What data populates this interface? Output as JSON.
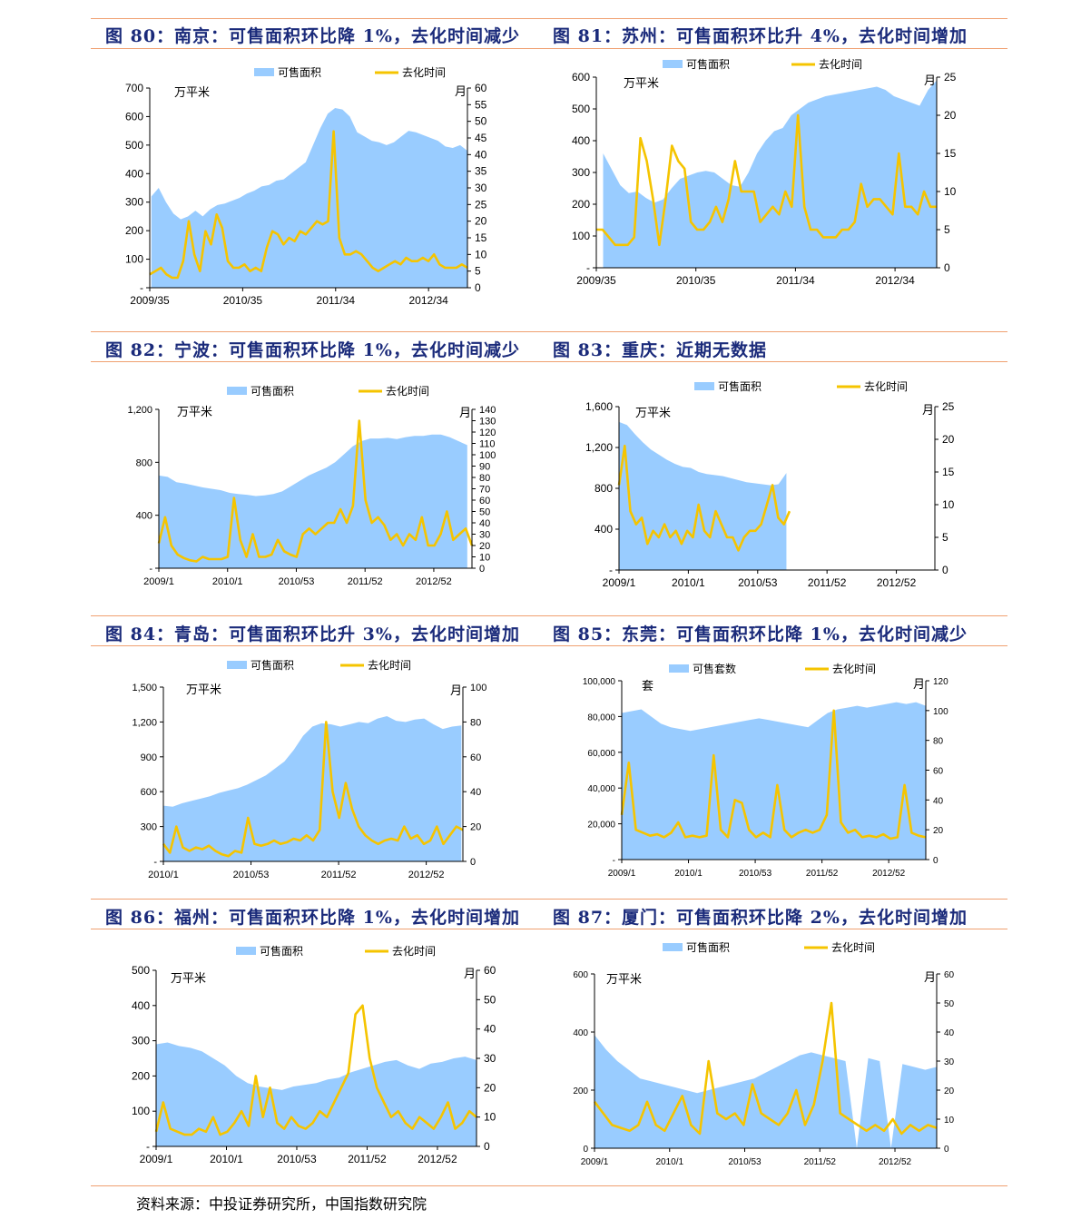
{
  "colors": {
    "area": "#99ccff",
    "line": "#f5c400",
    "title": "#1a2a7a",
    "rule": "#f0a070"
  },
  "source_note": "资料来源：中投证券研究所，中国指数研究院",
  "panels": [
    {
      "title": "图 80：南京：可售面积环比降 1%，去化时间减少",
      "legend": [
        "可售面积",
        "去化时间"
      ],
      "left_unit": "万平米",
      "right_unit": "月",
      "left_ticks": [
        "700",
        "600",
        "500",
        "400",
        "300",
        "200",
        "100",
        "-"
      ],
      "right_ticks": [
        "60",
        "55",
        "50",
        "45",
        "40",
        "35",
        "30",
        "25",
        "20",
        "15",
        "10",
        "5",
        "0"
      ],
      "x_ticks": [
        "2009/35",
        "2010/35",
        "2011/34",
        "2012/34"
      ],
      "chart_data": {
        "type": "area+line",
        "ylim": [
          0,
          700
        ],
        "y2lim": [
          0,
          60
        ],
        "series": [
          {
            "name": "可售面积",
            "axis": "left",
            "values": [
              320,
              350,
              300,
              260,
              240,
              250,
              270,
              250,
              275,
              290,
              295,
              305,
              315,
              330,
              340,
              355,
              360,
              375,
              380,
              400,
              420,
              440,
              500,
              560,
              610,
              630,
              625,
              600,
              545,
              530,
              515,
              510,
              500,
              510,
              530,
              550,
              545,
              535,
              525,
              515,
              495,
              490,
              500,
              480
            ]
          },
          {
            "name": "去化时间",
            "axis": "right",
            "values": [
              4,
              5,
              6,
              4,
              3,
              3,
              8,
              20,
              10,
              5,
              17,
              13,
              22,
              18,
              8,
              6,
              6,
              7,
              5,
              6,
              5,
              12,
              17,
              16,
              13,
              15,
              14,
              17,
              16,
              18,
              20,
              19,
              20,
              47,
              15,
              10,
              10,
              11,
              10,
              8,
              6,
              5,
              6,
              7,
              8,
              7,
              9,
              8,
              8,
              9,
              8,
              10,
              7,
              6,
              6,
              6,
              7,
              6
            ]
          }
        ]
      }
    },
    {
      "title": "图 81：苏州：可售面积环比升 4%，去化时间增加",
      "legend": [
        "可售面积",
        "去化时间"
      ],
      "left_unit": "万平米",
      "right_unit": "月",
      "left_ticks": [
        "600",
        "500",
        "400",
        "300",
        "200",
        "100",
        "-"
      ],
      "right_ticks": [
        "25",
        "20",
        "15",
        "10",
        "5",
        "0"
      ],
      "x_ticks": [
        "2009/35",
        "2010/35",
        "2011/34",
        "2012/34"
      ],
      "chart_data": {
        "type": "area+line",
        "ylim": [
          0,
          600
        ],
        "y2lim": [
          0,
          25
        ],
        "series": [
          {
            "name": "可售面积",
            "axis": "left",
            "values": [
              360,
              310,
              260,
              235,
              240,
              220,
              205,
              215,
              250,
              280,
              290,
              300,
              305,
              300,
              280,
              260,
              255,
              300,
              360,
              400,
              430,
              440,
              480,
              500,
              520,
              530,
              540,
              545,
              550,
              555,
              560,
              565,
              570,
              560,
              540,
              530,
              520,
              510,
              560,
              590
            ]
          },
          {
            "name": "去化时间",
            "axis": "right",
            "values": [
              5,
              5,
              4,
              3,
              3,
              3,
              4,
              17,
              14,
              9,
              3,
              9,
              16,
              14,
              13,
              6,
              5,
              5,
              6,
              8,
              6,
              9,
              14,
              10,
              10,
              10,
              6,
              7,
              8,
              7,
              10,
              8,
              20,
              8,
              5,
              5,
              4,
              4,
              4,
              5,
              5,
              6,
              11,
              8,
              9,
              9,
              8,
              7,
              15,
              8,
              8,
              7,
              10,
              8,
              8
            ]
          }
        ]
      }
    },
    {
      "title": "图 82：宁波：可售面积环比降 1%，去化时间减少",
      "legend": [
        "可售面积",
        "去化时间"
      ],
      "left_unit": "万平米",
      "right_unit": "月",
      "left_ticks": [
        "1,200",
        "800",
        "400",
        "-"
      ],
      "right_ticks": [
        "140",
        "130",
        "120",
        "110",
        "100",
        "90",
        "80",
        "70",
        "60",
        "50",
        "40",
        "30",
        "20",
        "10",
        "0"
      ],
      "x_ticks": [
        "2009/1",
        "2010/1",
        "2010/53",
        "2011/52",
        "2012/52"
      ],
      "chart_data": {
        "type": "area+line",
        "ylim": [
          0,
          1200
        ],
        "y2lim": [
          0,
          140
        ],
        "series": [
          {
            "name": "可售面积",
            "axis": "left",
            "values": [
              700,
              690,
              650,
              640,
              625,
              610,
              600,
              590,
              570,
              560,
              555,
              545,
              550,
              560,
              580,
              620,
              660,
              700,
              730,
              760,
              800,
              860,
              920,
              960,
              980,
              980,
              985,
              975,
              990,
              1000,
              1000,
              1010,
              1010,
              990,
              960,
              930
            ]
          },
          {
            "name": "去化时间",
            "axis": "right",
            "values": [
              22,
              45,
              20,
              12,
              9,
              7,
              6,
              10,
              8,
              8,
              8,
              10,
              62,
              25,
              10,
              30,
              10,
              10,
              12,
              25,
              15,
              12,
              10,
              30,
              35,
              30,
              35,
              40,
              40,
              52,
              40,
              55,
              130,
              60,
              40,
              45,
              38,
              25,
              30,
              20,
              30,
              25,
              45,
              20,
              20,
              30,
              50,
              25,
              30,
              35,
              20
            ]
          }
        ]
      }
    },
    {
      "title": "图 83：重庆：近期无数据",
      "legend": [
        "可售面积",
        "去化时间"
      ],
      "left_unit": "万平米",
      "right_unit": "月",
      "left_ticks": [
        "1,600",
        "1,200",
        "800",
        "400",
        "-"
      ],
      "right_ticks": [
        "25",
        "20",
        "15",
        "10",
        "5",
        "0"
      ],
      "x_ticks": [
        "2009/1",
        "2010/1",
        "2010/53",
        "2011/52",
        "2012/52"
      ],
      "chart_data": {
        "type": "area+line",
        "ylim": [
          0,
          1600
        ],
        "y2lim": [
          0,
          25
        ],
        "series": [
          {
            "name": "可售面积",
            "axis": "left",
            "values": [
              1450,
              1420,
              1330,
              1250,
              1180,
              1130,
              1080,
              1040,
              1010,
              1000,
              960,
              940,
              930,
              920,
              900,
              880,
              860,
              850,
              840,
              830,
              840,
              950
            ]
          },
          {
            "name": "去化时间",
            "axis": "right",
            "values": [
              13,
              19,
              9,
              7,
              8,
              4,
              6,
              5,
              7,
              5,
              6,
              4,
              6,
              5,
              10,
              6,
              5,
              9,
              7,
              5,
              5,
              3,
              5,
              6,
              6,
              7,
              10,
              13,
              8,
              7,
              9
            ]
          }
        ]
      }
    },
    {
      "title": "图 84：青岛：可售面积环比升 3%，去化时间增加",
      "legend": [
        "可售面积",
        "去化时间"
      ],
      "left_unit": "万平米",
      "right_unit": "月",
      "left_ticks": [
        "1,500",
        "1,200",
        "900",
        "600",
        "300",
        "-"
      ],
      "right_ticks": [
        "100",
        "80",
        "60",
        "40",
        "20",
        "0"
      ],
      "x_ticks": [
        "2010/1",
        "2010/53",
        "2011/52",
        "2012/52"
      ],
      "chart_data": {
        "type": "area+line",
        "ylim": [
          0,
          1500
        ],
        "y2lim": [
          0,
          100
        ],
        "series": [
          {
            "name": "可售面积",
            "axis": "left",
            "values": [
              480,
              470,
              500,
              520,
              540,
              560,
              590,
              610,
              630,
              660,
              700,
              740,
              800,
              860,
              960,
              1080,
              1160,
              1190,
              1180,
              1160,
              1180,
              1200,
              1190,
              1230,
              1250,
              1210,
              1200,
              1220,
              1230,
              1180,
              1140,
              1160,
              1170
            ]
          },
          {
            "name": "去化时间",
            "axis": "right",
            "values": [
              10,
              5,
              20,
              8,
              6,
              8,
              7,
              9,
              6,
              4,
              3,
              6,
              5,
              25,
              10,
              9,
              10,
              12,
              10,
              11,
              13,
              12,
              15,
              12,
              18,
              80,
              40,
              25,
              45,
              30,
              20,
              15,
              12,
              10,
              12,
              13,
              12,
              20,
              13,
              15,
              10,
              12,
              20,
              10,
              15,
              20,
              18
            ]
          }
        ]
      }
    },
    {
      "title": "图 85：东莞：可售面积环比降 1%，去化时间减少",
      "legend": [
        "可售套数",
        "去化时间"
      ],
      "left_unit": "套",
      "right_unit": "月",
      "left_ticks": [
        "100,000",
        "80,000",
        "60,000",
        "40,000",
        "20,000",
        "-"
      ],
      "right_ticks": [
        "120",
        "100",
        "80",
        "60",
        "40",
        "20",
        "0"
      ],
      "x_ticks": [
        "2009/1",
        "2010/1",
        "2010/53",
        "2011/52",
        "2012/52"
      ],
      "chart_data": {
        "type": "area+line",
        "ylim": [
          0,
          100000
        ],
        "y2lim": [
          0,
          120
        ],
        "series": [
          {
            "name": "可售套数",
            "axis": "left",
            "values": [
              82000,
              83000,
              84000,
              80000,
              76000,
              74000,
              73000,
              72000,
              73000,
              74000,
              75000,
              76000,
              77000,
              78000,
              79000,
              78000,
              77000,
              76000,
              75000,
              74000,
              78000,
              82000,
              84000,
              85000,
              86000,
              85000,
              86000,
              87000,
              88000,
              87000,
              88000,
              86000
            ]
          },
          {
            "name": "去化时间",
            "axis": "right",
            "values": [
              30,
              65,
              20,
              18,
              16,
              17,
              15,
              18,
              25,
              15,
              16,
              15,
              16,
              70,
              20,
              15,
              40,
              38,
              20,
              15,
              18,
              15,
              50,
              20,
              15,
              18,
              20,
              18,
              20,
              30,
              100,
              25,
              18,
              20,
              15,
              16,
              15,
              17,
              14,
              15,
              50,
              18,
              16,
              15
            ]
          }
        ]
      }
    },
    {
      "title": "图 86：福州：可售面积环比降 1%，去化时间增加",
      "legend": [
        "可售面积",
        "去化时间"
      ],
      "left_unit": "万平米",
      "right_unit": "月",
      "left_ticks": [
        "500",
        "400",
        "300",
        "200",
        "100",
        "-"
      ],
      "right_ticks": [
        "60",
        "50",
        "40",
        "30",
        "20",
        "10",
        "0"
      ],
      "x_ticks": [
        "2009/1",
        "2010/1",
        "2010/53",
        "2011/52",
        "2012/52"
      ],
      "chart_data": {
        "type": "area+line",
        "ylim": [
          0,
          500
        ],
        "y2lim": [
          0,
          60
        ],
        "series": [
          {
            "name": "可售面积",
            "axis": "left",
            "values": [
              290,
              295,
              285,
              280,
              270,
              250,
              230,
              200,
              180,
              170,
              165,
              160,
              170,
              175,
              180,
              190,
              195,
              210,
              220,
              230,
              240,
              245,
              230,
              220,
              235,
              240,
              250,
              255,
              245
            ]
          },
          {
            "name": "去化时间",
            "axis": "right",
            "values": [
              5,
              15,
              6,
              5,
              4,
              4,
              6,
              5,
              10,
              4,
              5,
              8,
              12,
              7,
              24,
              10,
              20,
              8,
              6,
              10,
              7,
              6,
              8,
              12,
              10,
              15,
              20,
              25,
              45,
              48,
              30,
              20,
              15,
              10,
              12,
              8,
              6,
              10,
              8,
              6,
              10,
              15,
              6,
              8,
              12,
              10
            ]
          }
        ]
      }
    },
    {
      "title": "图 87：厦门：可售面积环比降 2%，去化时间增加",
      "legend": [
        "可售面积",
        "去化时间"
      ],
      "left_unit": "万平米",
      "right_unit": "月",
      "left_ticks": [
        "600",
        "400",
        "200",
        "0"
      ],
      "right_ticks": [
        "60",
        "50",
        "40",
        "30",
        "20",
        "10",
        "0"
      ],
      "x_ticks": [
        "2009/1",
        "2010/1",
        "2010/53",
        "2011/52",
        "2012/52"
      ],
      "chart_data": {
        "type": "area+line",
        "ylim": [
          0,
          600
        ],
        "y2lim": [
          0,
          60
        ],
        "series": [
          {
            "name": "可售面积",
            "axis": "left",
            "values": [
              390,
              340,
              300,
              270,
              240,
              230,
              220,
              210,
              200,
              190,
              200,
              210,
              220,
              230,
              240,
              260,
              280,
              300,
              320,
              330,
              320,
              310,
              300,
              0,
              310,
              300,
              0,
              290,
              280,
              270,
              280
            ]
          },
          {
            "name": "去化时间",
            "axis": "right",
            "values": [
              16,
              12,
              8,
              7,
              6,
              8,
              16,
              8,
              6,
              12,
              18,
              8,
              5,
              30,
              12,
              10,
              12,
              8,
              22,
              12,
              10,
              8,
              12,
              20,
              8,
              15,
              30,
              50,
              12,
              10,
              8,
              6,
              8,
              6,
              10,
              5,
              8,
              6,
              8,
              7
            ]
          }
        ]
      }
    }
  ]
}
